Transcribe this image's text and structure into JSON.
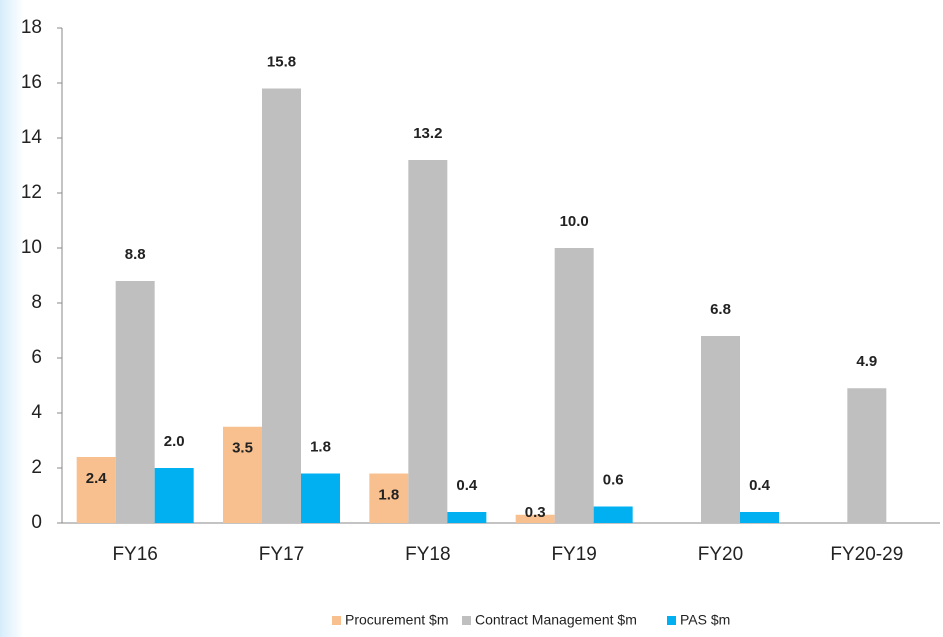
{
  "chart_data": {
    "type": "bar",
    "categories": [
      "FY16",
      "FY17",
      "FY18",
      "FY19",
      "FY20",
      "FY20-29"
    ],
    "series": [
      {
        "name": "Procurement $m",
        "color": "#f9c08f",
        "values": [
          2.4,
          3.5,
          1.8,
          0.3,
          null,
          null
        ],
        "value_labels": [
          "2.4",
          "3.5",
          "1.8",
          "0.3",
          null,
          null
        ]
      },
      {
        "name": "Contract Management $m",
        "color": "#bfbfbf",
        "values": [
          8.8,
          15.8,
          13.2,
          10.0,
          6.8,
          4.9
        ],
        "value_labels": [
          "8.8",
          "15.8",
          "13.2",
          "10.0",
          "6.8",
          "4.9"
        ]
      },
      {
        "name": "PAS $m",
        "color": "#00b0f0",
        "values": [
          2.0,
          1.8,
          0.4,
          0.6,
          0.4,
          null
        ],
        "value_labels": [
          "2.0",
          "1.8",
          "0.4",
          "0.6",
          "0.4",
          null
        ]
      }
    ],
    "ylim": [
      0,
      18
    ],
    "yticks": [
      0,
      2,
      4,
      6,
      8,
      10,
      12,
      14,
      16,
      18
    ],
    "grid": false,
    "legend": "bottom"
  }
}
